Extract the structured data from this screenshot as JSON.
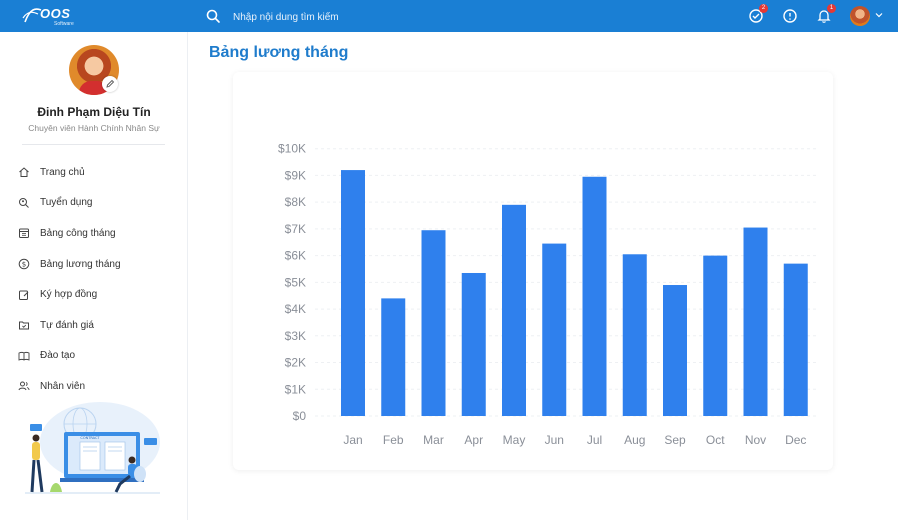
{
  "app": {
    "logo_text": "OOS",
    "logo_sub": "Software"
  },
  "header": {
    "search_placeholder": "Nhập nội dung tìm kiếm",
    "task_badge": "2",
    "notification_badge": "1"
  },
  "profile": {
    "name": "Đinh Phạm Diệu Tín",
    "role": "Chuyên viên Hành Chính Nhân Sự"
  },
  "sidebar": {
    "items": [
      {
        "label": "Trang chủ",
        "icon": "home-icon"
      },
      {
        "label": "Tuyển dụng",
        "icon": "search-person-icon"
      },
      {
        "label": "Bảng công tháng",
        "icon": "calendar-icon"
      },
      {
        "label": "Bảng lương tháng",
        "icon": "dollar-icon"
      },
      {
        "label": "Ký hợp đồng",
        "icon": "edit-icon"
      },
      {
        "label": "Tự đánh giá",
        "icon": "folder-check-icon"
      },
      {
        "label": "Đào tạo",
        "icon": "book-icon"
      },
      {
        "label": "Nhân viên",
        "icon": "users-icon"
      }
    ]
  },
  "illustration": {
    "label": "CONTRACT"
  },
  "main": {
    "title": "Bảng lương tháng"
  },
  "colors": {
    "primary": "#1a7fd4",
    "bar": "#2f80ed"
  },
  "chart_data": {
    "type": "bar",
    "categories": [
      "Jan",
      "Feb",
      "Mar",
      "Apr",
      "May",
      "Jun",
      "Jul",
      "Aug",
      "Sep",
      "Oct",
      "Nov",
      "Dec"
    ],
    "values": [
      9200,
      4400,
      6950,
      5350,
      7900,
      6450,
      8950,
      6050,
      4900,
      6000,
      7050,
      5700
    ],
    "yticks": [
      "$0",
      "$1K",
      "$2K",
      "$3K",
      "$4K",
      "$5K",
      "$6K",
      "$7K",
      "$8K",
      "$9K",
      "$10K"
    ],
    "ylim": [
      0,
      10400
    ],
    "grid": true,
    "title": "",
    "xlabel": "",
    "ylabel": ""
  }
}
